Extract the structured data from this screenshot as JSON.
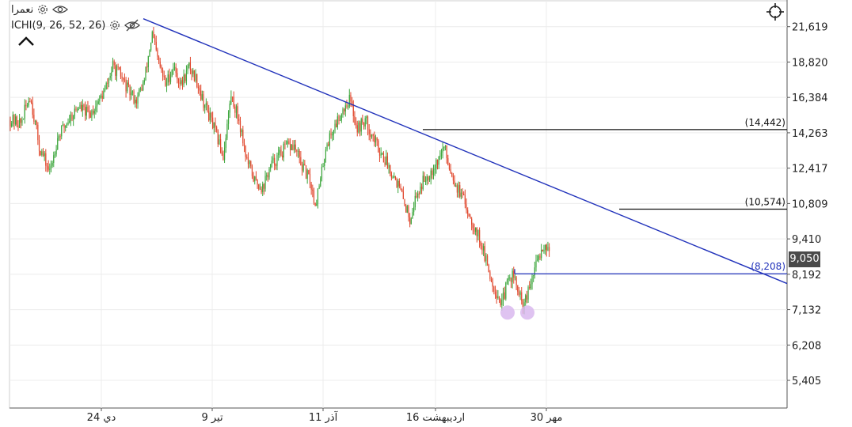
{
  "legend": {
    "symbol": "نعمرا",
    "indicator": "ICHI(9, 26, 52, 26)"
  },
  "icons": {
    "settings": "gear-icon",
    "visible": "eye-icon",
    "hidden": "eye-off-icon",
    "collapse": "chevron-up-icon",
    "crosshair": "crosshair-icon"
  },
  "colors": {
    "up": "#3aa53a",
    "down": "#e0452a",
    "trendline": "#2233bb",
    "support": "#2233bb",
    "level": "#111111",
    "marker": "#d9b8ee",
    "grid": "#ececec",
    "price_tag_bg": "#4a4a4a"
  },
  "current_price": "9,050",
  "chart_data": {
    "type": "candlestick",
    "y_scale": "log",
    "ylim": [
      4850,
      24000
    ],
    "y_ticks": [
      "21,619",
      "18,820",
      "16,384",
      "14,263",
      "12,417",
      "10,809",
      "9,410",
      "8,192",
      "7,132",
      "6,208",
      "5,405"
    ],
    "x_ticks": [
      "24 دي",
      "9 تير",
      "11 آذر",
      "16 ارديبهشت",
      "30 مهر"
    ],
    "levels": [
      {
        "label": "(14,442)",
        "value": 14442
      },
      {
        "label": "(10,574)",
        "value": 10574
      },
      {
        "label": "(8,208)",
        "value": 8208
      }
    ],
    "trendline": {
      "from_value": 22300,
      "to_value": 7900
    },
    "markers": [
      {
        "value": 7050
      },
      {
        "value": 7050
      }
    ],
    "price_path": [
      [
        0,
        15000
      ],
      [
        8,
        14800
      ],
      [
        15,
        16500
      ],
      [
        22,
        13500
      ],
      [
        30,
        12200
      ],
      [
        36,
        14000
      ],
      [
        44,
        15000
      ],
      [
        52,
        15800
      ],
      [
        60,
        15300
      ],
      [
        66,
        16000
      ],
      [
        72,
        16800
      ],
      [
        78,
        18500
      ],
      [
        84,
        17800
      ],
      [
        90,
        16800
      ],
      [
        96,
        16200
      ],
      [
        102,
        17500
      ],
      [
        108,
        21000
      ],
      [
        112,
        19000
      ],
      [
        118,
        17200
      ],
      [
        124,
        18500
      ],
      [
        130,
        17200
      ],
      [
        136,
        18500
      ],
      [
        142,
        17500
      ],
      [
        146,
        16300
      ],
      [
        150,
        15500
      ],
      [
        156,
        14300
      ],
      [
        162,
        13000
      ],
      [
        168,
        16500
      ],
      [
        174,
        15000
      ],
      [
        180,
        12800
      ],
      [
        186,
        11800
      ],
      [
        192,
        11500
      ],
      [
        198,
        12500
      ],
      [
        204,
        13000
      ],
      [
        210,
        13500
      ],
      [
        216,
        13500
      ],
      [
        222,
        12500
      ],
      [
        228,
        11800
      ],
      [
        232,
        10800
      ],
      [
        236,
        11800
      ],
      [
        240,
        13500
      ],
      [
        246,
        14500
      ],
      [
        252,
        15500
      ],
      [
        258,
        16300
      ],
      [
        264,
        14500
      ],
      [
        270,
        15000
      ],
      [
        276,
        14000
      ],
      [
        282,
        13200
      ],
      [
        288,
        12500
      ],
      [
        294,
        11800
      ],
      [
        300,
        10800
      ],
      [
        304,
        10200
      ],
      [
        308,
        11000
      ],
      [
        314,
        11800
      ],
      [
        320,
        12300
      ],
      [
        326,
        12900
      ],
      [
        330,
        13500
      ],
      [
        334,
        12500
      ],
      [
        340,
        11500
      ],
      [
        346,
        10800
      ],
      [
        352,
        10000
      ],
      [
        358,
        9300
      ],
      [
        362,
        8600
      ],
      [
        366,
        8000
      ],
      [
        370,
        7600
      ],
      [
        374,
        7300
      ],
      [
        378,
        7900
      ],
      [
        382,
        8200
      ],
      [
        386,
        7700
      ],
      [
        390,
        7200
      ],
      [
        394,
        7600
      ],
      [
        398,
        8200
      ],
      [
        402,
        8800
      ],
      [
        406,
        9200
      ],
      [
        410,
        9050
      ]
    ]
  }
}
